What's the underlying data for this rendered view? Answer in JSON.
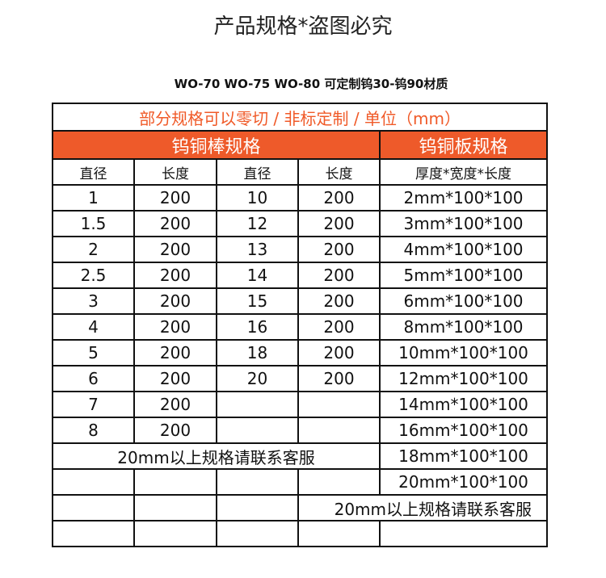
{
  "title": "产品规格*盗图必究",
  "subtitle": "WO-70  WO-75  WO-80  可定制钨30-钨90材质",
  "table": {
    "note": "部分规格可以零切 / 非标定制 / 单位（mm）",
    "rod_header": "钨铜棒规格",
    "plate_header": "钨铜板规格",
    "col_headers": [
      "直径",
      "长度",
      "直径",
      "长度",
      "厚度*宽度*长度"
    ],
    "rows": [
      [
        "1",
        "200",
        "10",
        "200",
        "2mm*100*100"
      ],
      [
        "1.5",
        "200",
        "12",
        "200",
        "3mm*100*100"
      ],
      [
        "2",
        "200",
        "13",
        "200",
        "4mm*100*100"
      ],
      [
        "2.5",
        "200",
        "14",
        "200",
        "5mm*100*100"
      ],
      [
        "3",
        "200",
        "15",
        "200",
        "6mm*100*100"
      ],
      [
        "4",
        "200",
        "16",
        "200",
        "8mm*100*100"
      ],
      [
        "5",
        "200",
        "18",
        "200",
        "10mm*100*100"
      ],
      [
        "6",
        "200",
        "20",
        "200",
        "12mm*100*100"
      ],
      [
        "7",
        "200",
        "",
        "",
        "14mm*100*100"
      ],
      [
        "8",
        "200",
        "",
        "",
        "16mm*100*100"
      ]
    ],
    "rod_contact": "20mm以上规格请联系客服",
    "plate_18": "18mm*100*100",
    "plate_20": "20mm*100*100",
    "plate_contact": "20mm以上规格请联系客服"
  },
  "colors": {
    "accent": "#ee5a2a",
    "note_text": "#f05a28"
  }
}
